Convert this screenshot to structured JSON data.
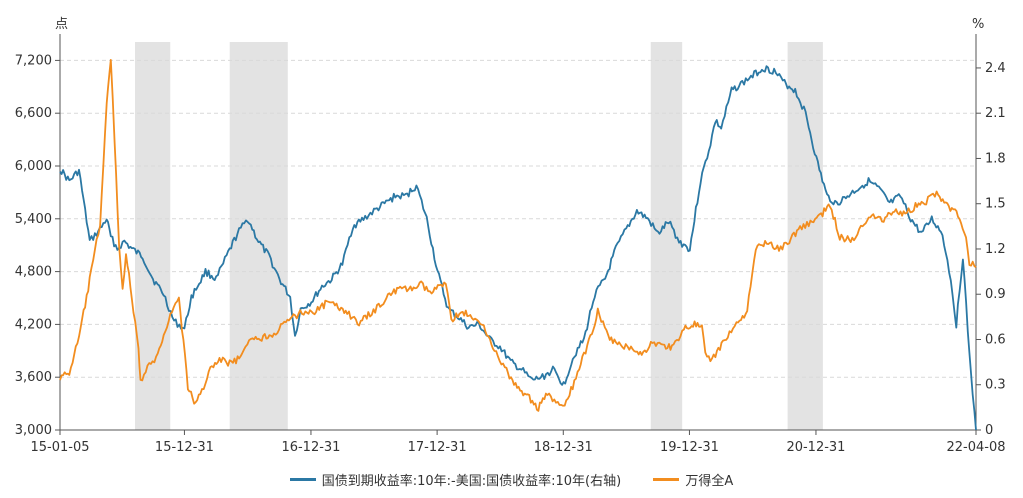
{
  "chart_data": {
    "type": "line",
    "title": "",
    "left_axis": {
      "unit": "点",
      "ylim": [
        3000,
        7500
      ],
      "ticks": [
        3000,
        3600,
        4200,
        4800,
        5400,
        6000,
        6600,
        7200
      ],
      "tick_labels": [
        "3,000",
        "3,600",
        "4,200",
        "4,800",
        "5,400",
        "6,000",
        "6,600",
        "7,200"
      ]
    },
    "right_axis": {
      "unit": "%",
      "ylim": [
        0,
        2.625
      ],
      "ticks": [
        0,
        0.3,
        0.6,
        0.9,
        1.2,
        1.5,
        1.8,
        2.1,
        2.4
      ],
      "tick_labels": [
        "0",
        "0.3",
        "0.6",
        "0.9",
        "1.2",
        "1.5",
        "1.8",
        "2.1",
        "2.4"
      ]
    },
    "x_axis": {
      "range": [
        "2015-01-05",
        "2022-04-08"
      ],
      "tick_dates": [
        "2015-01-05",
        "2015-12-31",
        "2016-12-31",
        "2017-12-31",
        "2018-12-31",
        "2019-12-31",
        "2020-12-31",
        "2022-04-08"
      ],
      "tick_labels": [
        "15-01-05",
        "15-12-31",
        "16-12-31",
        "17-12-31",
        "18-12-31",
        "19-12-31",
        "20-12-31",
        "22-04-08"
      ]
    },
    "shaded_periods": [
      [
        "2015-08-10",
        "2015-11-20"
      ],
      [
        "2016-05-10",
        "2016-10-25"
      ],
      [
        "2019-09-10",
        "2019-12-10"
      ],
      [
        "2020-10-10",
        "2021-01-20"
      ]
    ],
    "series": [
      {
        "name": "国债到期收益率:10年:-美国:国债收益率:10年(右轴)",
        "axis": "right",
        "color": "#2b78a4",
        "x": [
          "2015-01-05",
          "2015-02-01",
          "2015-03-01",
          "2015-04-01",
          "2015-05-01",
          "2015-05-20",
          "2015-06-01",
          "2015-06-20",
          "2015-07-10",
          "2015-08-01",
          "2015-09-01",
          "2015-10-01",
          "2015-11-01",
          "2015-12-01",
          "2015-12-31",
          "2016-01-20",
          "2016-03-01",
          "2016-04-01",
          "2016-05-01",
          "2016-06-01",
          "2016-07-01",
          "2016-08-01",
          "2016-09-01",
          "2016-10-01",
          "2016-11-01",
          "2016-11-15",
          "2016-12-01",
          "2017-01-01",
          "2017-02-01",
          "2017-03-01",
          "2017-04-01",
          "2017-05-01",
          "2017-06-01",
          "2017-07-01",
          "2017-08-01",
          "2017-09-01",
          "2017-10-01",
          "2017-11-01",
          "2017-12-01",
          "2018-01-01",
          "2018-02-01",
          "2018-03-01",
          "2018-04-01",
          "2018-05-01",
          "2018-06-01",
          "2018-07-01",
          "2018-08-01",
          "2018-09-01",
          "2018-10-01",
          "2018-11-01",
          "2018-12-01",
          "2019-01-01",
          "2019-02-01",
          "2019-03-01",
          "2019-04-01",
          "2019-05-01",
          "2019-06-01",
          "2019-07-01",
          "2019-08-01",
          "2019-09-01",
          "2019-10-01",
          "2019-11-01",
          "2019-12-01",
          "2020-01-01",
          "2020-02-01",
          "2020-03-01",
          "2020-03-15",
          "2020-04-01",
          "2020-05-01",
          "2020-06-01",
          "2020-07-01",
          "2020-08-01",
          "2020-09-01",
          "2020-10-01",
          "2020-11-01",
          "2020-12-01",
          "2021-01-01",
          "2021-02-01",
          "2021-03-01",
          "2021-04-01",
          "2021-05-01",
          "2021-06-01",
          "2021-07-01",
          "2021-08-01",
          "2021-09-01",
          "2021-10-01",
          "2021-11-01",
          "2021-12-01",
          "2022-01-01",
          "2022-01-25",
          "2022-02-10",
          "2022-03-01",
          "2022-03-20",
          "2022-04-08"
        ],
        "values": [
          1.73,
          1.65,
          1.72,
          1.25,
          1.33,
          1.4,
          1.28,
          1.2,
          1.25,
          1.2,
          1.15,
          1.0,
          0.9,
          0.72,
          0.67,
          0.88,
          1.05,
          1.0,
          1.15,
          1.3,
          1.4,
          1.25,
          1.15,
          1.0,
          0.88,
          0.62,
          0.8,
          0.85,
          0.95,
          1.0,
          1.1,
          1.35,
          1.4,
          1.45,
          1.5,
          1.55,
          1.55,
          1.62,
          1.4,
          1.05,
          0.8,
          0.75,
          0.68,
          0.7,
          0.6,
          0.55,
          0.45,
          0.4,
          0.33,
          0.35,
          0.4,
          0.3,
          0.5,
          0.6,
          0.9,
          1.0,
          1.2,
          1.33,
          1.45,
          1.4,
          1.3,
          1.38,
          1.25,
          1.2,
          1.65,
          1.9,
          2.05,
          2.0,
          2.25,
          2.3,
          2.35,
          2.4,
          2.38,
          2.3,
          2.25,
          2.1,
          1.8,
          1.55,
          1.5,
          1.55,
          1.6,
          1.65,
          1.6,
          1.5,
          1.55,
          1.4,
          1.3,
          1.4,
          1.3,
          1.0,
          0.7,
          1.15,
          0.5,
          0.0
        ]
      },
      {
        "name": "万得全A",
        "axis": "left",
        "color": "#f28d1f",
        "x": [
          "2015-01-05",
          "2015-02-01",
          "2015-03-01",
          "2015-04-01",
          "2015-05-01",
          "2015-05-20",
          "2015-06-01",
          "2015-06-12",
          "2015-06-25",
          "2015-07-05",
          "2015-07-15",
          "2015-08-01",
          "2015-08-20",
          "2015-08-26",
          "2015-09-15",
          "2015-10-15",
          "2015-11-01",
          "2015-11-25",
          "2015-12-15",
          "2016-01-10",
          "2016-01-28",
          "2016-02-15",
          "2016-03-15",
          "2016-04-15",
          "2016-05-15",
          "2016-06-15",
          "2016-07-15",
          "2016-08-15",
          "2016-09-15",
          "2016-10-15",
          "2016-11-15",
          "2016-12-15",
          "2017-01-15",
          "2017-02-15",
          "2017-03-15",
          "2017-04-15",
          "2017-05-15",
          "2017-06-15",
          "2017-07-15",
          "2017-08-15",
          "2017-09-15",
          "2017-10-15",
          "2017-11-15",
          "2017-12-15",
          "2018-01-25",
          "2018-02-10",
          "2018-03-15",
          "2018-04-15",
          "2018-05-15",
          "2018-06-15",
          "2018-07-15",
          "2018-08-15",
          "2018-09-15",
          "2018-10-20",
          "2018-11-15",
          "2018-12-15",
          "2019-01-04",
          "2019-02-15",
          "2019-03-15",
          "2019-04-10",
          "2019-05-10",
          "2019-06-15",
          "2019-07-15",
          "2019-08-15",
          "2019-09-15",
          "2019-10-15",
          "2019-11-15",
          "2019-12-15",
          "2020-01-15",
          "2020-02-05",
          "2020-02-20",
          "2020-03-15",
          "2020-04-15",
          "2020-05-15",
          "2020-06-15",
          "2020-07-10",
          "2020-08-15",
          "2020-09-15",
          "2020-10-15",
          "2020-11-15",
          "2020-12-15",
          "2021-01-15",
          "2021-02-10",
          "2021-03-10",
          "2021-04-15",
          "2021-05-15",
          "2021-06-15",
          "2021-07-15",
          "2021-08-15",
          "2021-09-15",
          "2021-10-15",
          "2021-11-15",
          "2021-12-15",
          "2022-01-15",
          "2022-02-15",
          "2022-03-10",
          "2022-03-20",
          "2022-04-08"
        ],
        "values": [
          3600,
          3650,
          4050,
          4700,
          5350,
          6700,
          7200,
          6300,
          5100,
          4600,
          5000,
          4500,
          3900,
          3550,
          3700,
          3850,
          4100,
          4350,
          4500,
          3500,
          3300,
          3400,
          3700,
          3800,
          3750,
          3850,
          4050,
          4050,
          4100,
          4200,
          4300,
          4350,
          4350,
          4450,
          4400,
          4350,
          4200,
          4300,
          4400,
          4550,
          4600,
          4600,
          4650,
          4550,
          4700,
          4250,
          4350,
          4250,
          4200,
          3900,
          3700,
          3500,
          3400,
          3250,
          3400,
          3300,
          3250,
          3700,
          4000,
          4350,
          4050,
          3950,
          3950,
          3850,
          4000,
          3950,
          3950,
          4150,
          4200,
          4150,
          3800,
          3850,
          4050,
          4200,
          4350,
          5050,
          5150,
          5050,
          5150,
          5300,
          5350,
          5450,
          5550,
          5200,
          5150,
          5350,
          5450,
          5400,
          5500,
          5450,
          5550,
          5600,
          5700,
          5550,
          5450,
          5150,
          4900,
          4850
        ]
      }
    ],
    "legend": [
      "国债到期收益率:10年:-美国:国债收益率:10年(右轴)",
      "万得全A"
    ],
    "legend_position": "bottom-center",
    "grid": true
  }
}
